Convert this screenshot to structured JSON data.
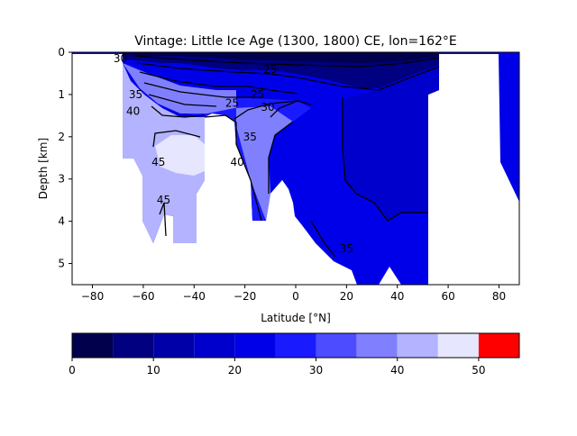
{
  "chart_data": {
    "type": "heatmap",
    "title": "Vintage: Little Ice Age (1300, 1800) CE, lon=162°E",
    "xlabel": "Latitude [°N]",
    "ylabel": "Depth [km]",
    "xlim": [
      -88,
      88
    ],
    "ylim": [
      5.5,
      0
    ],
    "x_ticks": [
      -80,
      -60,
      -40,
      -20,
      0,
      20,
      40,
      60,
      80
    ],
    "x_tick_labels": [
      "−80",
      "−60",
      "−40",
      "−20",
      "0",
      "20",
      "40",
      "60",
      "80"
    ],
    "y_ticks": [
      0,
      1,
      2,
      3,
      4,
      5
    ],
    "y_tick_labels": [
      "0",
      "1",
      "2",
      "3",
      "4",
      "5"
    ],
    "y_inverted": true,
    "grid": false,
    "colorbar": {
      "orientation": "horizontal",
      "placement": "bottom",
      "levels": [
        0,
        5,
        10,
        15,
        20,
        25,
        30,
        35,
        40,
        45,
        50,
        55
      ],
      "colors": [
        "#00004d",
        "#000080",
        "#0000a8",
        "#0000cc",
        "#0000e8",
        "#1a1aff",
        "#4d4dff",
        "#8080ff",
        "#b3b3ff",
        "#e6e6ff",
        "#ff0000"
      ],
      "ticks": [
        0,
        10,
        20,
        30,
        40,
        50
      ],
      "tick_labels": [
        "0",
        "10",
        "20",
        "30",
        "40",
        "50"
      ]
    },
    "contour_labels": [
      {
        "text": "30",
        "lat": -69,
        "depth": 0.15
      },
      {
        "text": "35",
        "lat": -63,
        "depth": 1.0
      },
      {
        "text": "40",
        "lat": -64,
        "depth": 1.4
      },
      {
        "text": "45",
        "lat": -54,
        "depth": 2.6
      },
      {
        "text": "45",
        "lat": -52,
        "depth": 3.5
      },
      {
        "text": "25",
        "lat": -10,
        "depth": 0.4
      },
      {
        "text": "25",
        "lat": -15,
        "depth": 1.0
      },
      {
        "text": "25",
        "lat": -25,
        "depth": 1.2
      },
      {
        "text": "30",
        "lat": -11,
        "depth": 1.3
      },
      {
        "text": "35",
        "lat": -18,
        "depth": 2.0
      },
      {
        "text": "40",
        "lat": -23,
        "depth": 2.6
      },
      {
        "text": "35",
        "lat": 20,
        "depth": 4.65
      }
    ]
  }
}
